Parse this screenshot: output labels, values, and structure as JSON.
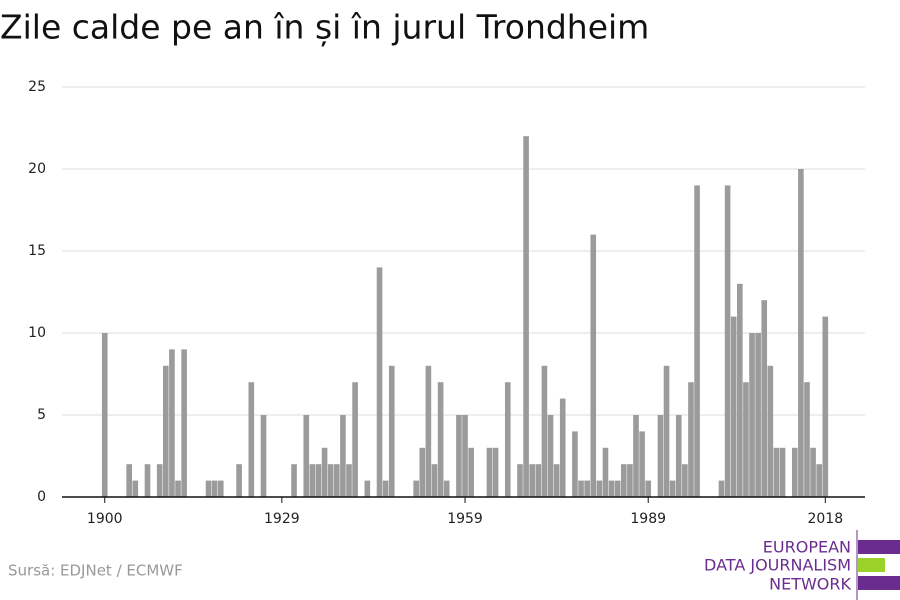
{
  "chart_data": {
    "type": "bar",
    "title": "Zile calde pe an în și în jurul Trondheim",
    "source": "Sursă: EDJNet / ECMWF",
    "logo": [
      "EUROPEAN",
      "DATA JOURNALISM",
      "NETWORK"
    ],
    "color": "#9b9b9b",
    "x": [
      1900,
      1901,
      1902,
      1903,
      1904,
      1905,
      1906,
      1907,
      1908,
      1909,
      1910,
      1911,
      1912,
      1913,
      1914,
      1915,
      1916,
      1917,
      1918,
      1919,
      1920,
      1921,
      1922,
      1923,
      1924,
      1925,
      1926,
      1927,
      1928,
      1929,
      1930,
      1931,
      1932,
      1933,
      1934,
      1935,
      1936,
      1937,
      1938,
      1939,
      1940,
      1941,
      1942,
      1943,
      1944,
      1945,
      1946,
      1947,
      1948,
      1949,
      1950,
      1951,
      1952,
      1953,
      1954,
      1955,
      1956,
      1957,
      1958,
      1959,
      1960,
      1961,
      1962,
      1963,
      1964,
      1965,
      1966,
      1967,
      1968,
      1969,
      1970,
      1971,
      1972,
      1973,
      1974,
      1975,
      1976,
      1977,
      1978,
      1979,
      1980,
      1981,
      1982,
      1983,
      1984,
      1985,
      1986,
      1987,
      1988,
      1989,
      1990,
      1991,
      1992,
      1993,
      1994,
      1995,
      1996,
      1997,
      1998,
      1999,
      2000,
      2001,
      2002,
      2003,
      2004,
      2005,
      2006,
      2007,
      2008,
      2009,
      2010,
      2011,
      2012,
      2013,
      2014,
      2015,
      2016,
      2017,
      2018
    ],
    "values": [
      10,
      0,
      0,
      0,
      2,
      1,
      0,
      2,
      0,
      2,
      8,
      9,
      1,
      9,
      0,
      0,
      0,
      1,
      1,
      1,
      0,
      0,
      2,
      0,
      7,
      0,
      5,
      0,
      0,
      0,
      0,
      2,
      0,
      5,
      2,
      2,
      3,
      2,
      2,
      5,
      2,
      7,
      0,
      1,
      0,
      14,
      1,
      8,
      0,
      0,
      0,
      1,
      3,
      8,
      2,
      7,
      1,
      0,
      5,
      5,
      3,
      0,
      0,
      3,
      3,
      0,
      7,
      0,
      2,
      22,
      2,
      2,
      8,
      5,
      2,
      6,
      0,
      4,
      1,
      1,
      16,
      1,
      3,
      1,
      1,
      2,
      2,
      5,
      4,
      1,
      0,
      5,
      8,
      1,
      5,
      2,
      7,
      19,
      0,
      0,
      0,
      1,
      19,
      11,
      13,
      7,
      10,
      10,
      12,
      8,
      3,
      3,
      0,
      3,
      20,
      7,
      3,
      2,
      11
    ],
    "xlim": [
      1893,
      2024.5
    ],
    "xticks": [
      1900,
      1929,
      1959,
      1989,
      2018
    ],
    "ylim": [
      0,
      25
    ],
    "yticks": [
      0,
      5,
      10,
      15,
      20,
      25
    ],
    "grid": true
  }
}
